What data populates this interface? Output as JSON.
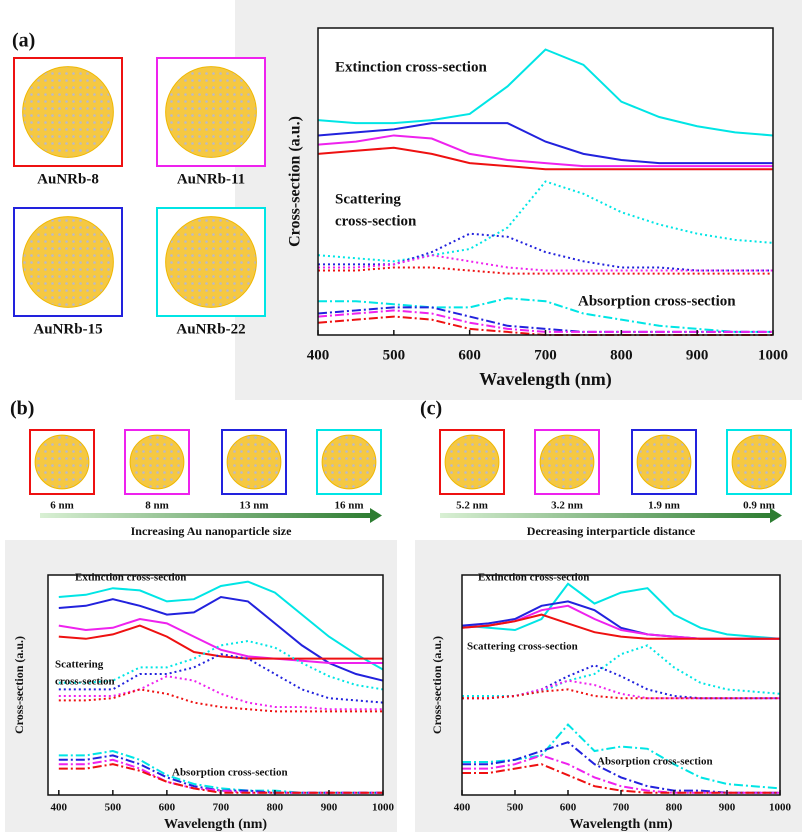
{
  "figure": {
    "panel_labels": [
      "(a)",
      "(b)",
      "(c)"
    ],
    "a_particles": [
      "AuNRb-8",
      "AuNRb-11",
      "AuNRb-15",
      "AuNRb-22"
    ],
    "b_particles": [
      "6 nm",
      "8 nm",
      "13 nm",
      "16 nm"
    ],
    "b_caption": "Increasing Au nanoparticle size",
    "c_particles": [
      "5.2 nm",
      "3.2 nm",
      "1.9 nm",
      "0.9 nm"
    ],
    "c_caption": "Decreasing interparticle distance"
  },
  "chart_data": [
    {
      "type": "line",
      "xlabel": "Wavelength (nm)",
      "ylabel": "Cross-section (a.u.)",
      "annotations": [
        "Extinction cross-section",
        "Scattering",
        "cross-section",
        "Absorption cross-section"
      ],
      "x": [
        400,
        450,
        500,
        550,
        600,
        650,
        700,
        750,
        800,
        850,
        900,
        950,
        1000
      ],
      "xlim": [
        400,
        1000
      ],
      "xticks": [
        400,
        500,
        600,
        700,
        800,
        900,
        1000
      ],
      "ylim": [
        0,
        100
      ],
      "series": [
        {
          "color": "#00e5e5",
          "dash": "solid",
          "values": [
            70,
            69,
            69,
            70,
            72,
            81,
            93,
            88,
            76,
            71,
            68,
            66,
            65
          ]
        },
        {
          "color": "#2222dd",
          "dash": "solid",
          "values": [
            65,
            66,
            67,
            69,
            69,
            69,
            63,
            59,
            57,
            56,
            56,
            56,
            56
          ]
        },
        {
          "color": "#ee22ee",
          "dash": "solid",
          "values": [
            62,
            63,
            65,
            64,
            59,
            57,
            56,
            55,
            55,
            55,
            55,
            55,
            55
          ]
        },
        {
          "color": "#ee1111",
          "dash": "solid",
          "values": [
            59,
            60,
            61,
            59,
            56,
            55,
            54,
            54,
            54,
            54,
            54,
            54,
            54
          ]
        },
        {
          "color": "#00e5e5",
          "dash": "dotted",
          "values": [
            26,
            25,
            24,
            26,
            28,
            35,
            50,
            46,
            40,
            36,
            33,
            31,
            30
          ]
        },
        {
          "color": "#2222dd",
          "dash": "dotted",
          "values": [
            23,
            23,
            23,
            27,
            33,
            32,
            27,
            24,
            22,
            22,
            21,
            21,
            21
          ]
        },
        {
          "color": "#ee22ee",
          "dash": "dotted",
          "values": [
            22,
            22,
            23,
            26,
            24,
            22,
            21,
            21,
            21,
            21,
            21,
            21,
            21
          ]
        },
        {
          "color": "#ee1111",
          "dash": "dotted",
          "values": [
            21,
            21,
            22,
            22,
            21,
            20,
            20,
            20,
            20,
            20,
            20,
            20,
            20
          ]
        },
        {
          "color": "#00e5e5",
          "dash": "dashdot",
          "values": [
            11,
            11,
            10,
            9,
            9,
            12,
            11,
            7,
            5,
            3,
            2,
            1,
            1
          ]
        },
        {
          "color": "#2222dd",
          "dash": "dashdot",
          "values": [
            7,
            8,
            9,
            9,
            6,
            3,
            2,
            1,
            1,
            1,
            1,
            1,
            1
          ]
        },
        {
          "color": "#ee22ee",
          "dash": "dashdot",
          "values": [
            6,
            7,
            8,
            7,
            4,
            2,
            1,
            1,
            1,
            1,
            1,
            1,
            1
          ]
        },
        {
          "color": "#ee1111",
          "dash": "dashdot",
          "values": [
            4,
            5,
            6,
            5,
            2,
            1,
            0,
            0,
            0,
            0,
            0,
            0,
            0
          ]
        }
      ]
    },
    {
      "type": "line",
      "xlabel": "Wavelength (nm)",
      "ylabel": "Cross-section (a.u.)",
      "annotations": [
        "Extinction cross-section",
        "Scattering",
        "cross-section",
        "Absorption cross-section"
      ],
      "x": [
        400,
        450,
        500,
        550,
        600,
        650,
        700,
        750,
        800,
        850,
        900,
        950,
        1000
      ],
      "xlim": [
        380,
        1000
      ],
      "xticks": [
        400,
        500,
        600,
        700,
        800,
        900,
        1000
      ],
      "ylim": [
        0,
        100
      ],
      "series": [
        {
          "color": "#00e5e5",
          "dash": "solid",
          "values": [
            90,
            91,
            94,
            93,
            88,
            89,
            95,
            97,
            92,
            82,
            72,
            64,
            57
          ]
        },
        {
          "color": "#2222dd",
          "dash": "solid",
          "values": [
            85,
            86,
            89,
            86,
            82,
            83,
            90,
            88,
            78,
            68,
            60,
            55,
            52
          ]
        },
        {
          "color": "#ee22ee",
          "dash": "solid",
          "values": [
            77,
            75,
            76,
            80,
            78,
            72,
            66,
            63,
            62,
            61,
            60,
            60,
            60
          ]
        },
        {
          "color": "#ee1111",
          "dash": "solid",
          "values": [
            72,
            71,
            73,
            77,
            72,
            65,
            63,
            62,
            62,
            62,
            62,
            62,
            62
          ]
        },
        {
          "color": "#00e5e5",
          "dash": "dotted",
          "values": [
            51,
            51,
            52,
            58,
            58,
            62,
            68,
            70,
            67,
            60,
            54,
            50,
            48
          ]
        },
        {
          "color": "#2222dd",
          "dash": "dotted",
          "values": [
            48,
            48,
            48,
            55,
            55,
            58,
            64,
            62,
            55,
            48,
            44,
            43,
            42
          ]
        },
        {
          "color": "#ee22ee",
          "dash": "dotted",
          "values": [
            45,
            45,
            45,
            48,
            54,
            52,
            46,
            42,
            40,
            40,
            39,
            39,
            39
          ]
        },
        {
          "color": "#ee1111",
          "dash": "dotted",
          "values": [
            43,
            43,
            44,
            48,
            46,
            42,
            40,
            39,
            38,
            38,
            38,
            38,
            38
          ]
        },
        {
          "color": "#00e5e5",
          "dash": "dashdot",
          "values": [
            18,
            18,
            20,
            16,
            9,
            5,
            3,
            2,
            2,
            1,
            1,
            1,
            1
          ]
        },
        {
          "color": "#2222dd",
          "dash": "dashdot",
          "values": [
            16,
            16,
            18,
            14,
            8,
            4,
            2,
            2,
            1,
            1,
            1,
            1,
            1
          ]
        },
        {
          "color": "#ee22ee",
          "dash": "dashdot",
          "values": [
            14,
            14,
            16,
            12,
            6,
            3,
            2,
            1,
            1,
            1,
            1,
            1,
            1
          ]
        },
        {
          "color": "#ee1111",
          "dash": "dashdot",
          "values": [
            12,
            12,
            14,
            11,
            6,
            3,
            1,
            1,
            1,
            1,
            1,
            1,
            1
          ]
        }
      ]
    },
    {
      "type": "line",
      "xlabel": "Wavelength (nm)",
      "ylabel": "Cross-section (a.u.)",
      "annotations": [
        "Extinction cross-section",
        "Scattering cross-section",
        "Absorption cross-section"
      ],
      "x": [
        400,
        450,
        500,
        550,
        600,
        650,
        700,
        750,
        800,
        850,
        900,
        950,
        1000
      ],
      "xlim": [
        400,
        1000
      ],
      "xticks": [
        400,
        500,
        600,
        700,
        800,
        900,
        1000
      ],
      "ylim": [
        0,
        100
      ],
      "series": [
        {
          "color": "#00e5e5",
          "dash": "solid",
          "values": [
            77,
            76,
            75,
            80,
            96,
            87,
            92,
            94,
            82,
            76,
            73,
            72,
            71
          ]
        },
        {
          "color": "#2222dd",
          "dash": "solid",
          "values": [
            77,
            78,
            80,
            86,
            88,
            84,
            76,
            73,
            72,
            71,
            71,
            71,
            71
          ]
        },
        {
          "color": "#ee22ee",
          "dash": "solid",
          "values": [
            76,
            77,
            79,
            84,
            86,
            80,
            75,
            73,
            72,
            71,
            71,
            71,
            71
          ]
        },
        {
          "color": "#ee1111",
          "dash": "solid",
          "values": [
            76,
            77,
            79,
            82,
            78,
            74,
            72,
            71,
            71,
            71,
            71,
            71,
            71
          ]
        },
        {
          "color": "#00e5e5",
          "dash": "dotted",
          "values": [
            45,
            45,
            45,
            47,
            52,
            55,
            64,
            68,
            58,
            51,
            48,
            47,
            46
          ]
        },
        {
          "color": "#2222dd",
          "dash": "dotted",
          "values": [
            44,
            44,
            45,
            48,
            54,
            59,
            54,
            48,
            45,
            44,
            44,
            44,
            44
          ]
        },
        {
          "color": "#ee22ee",
          "dash": "dotted",
          "values": [
            44,
            44,
            45,
            48,
            52,
            50,
            46,
            44,
            44,
            44,
            44,
            44,
            44
          ]
        },
        {
          "color": "#ee1111",
          "dash": "dotted",
          "values": [
            44,
            44,
            45,
            47,
            48,
            45,
            44,
            44,
            44,
            44,
            44,
            44,
            44
          ]
        },
        {
          "color": "#00e5e5",
          "dash": "dashdot",
          "values": [
            15,
            15,
            16,
            18,
            32,
            20,
            22,
            21,
            14,
            8,
            5,
            4,
            3
          ]
        },
        {
          "color": "#2222dd",
          "dash": "dashdot",
          "values": [
            14,
            14,
            16,
            20,
            24,
            14,
            8,
            4,
            2,
            2,
            1,
            1,
            1
          ]
        },
        {
          "color": "#ee22ee",
          "dash": "dashdot",
          "values": [
            12,
            12,
            14,
            18,
            14,
            8,
            4,
            2,
            1,
            1,
            1,
            1,
            1
          ]
        },
        {
          "color": "#ee1111",
          "dash": "dashdot",
          "values": [
            10,
            10,
            12,
            14,
            9,
            4,
            2,
            1,
            1,
            1,
            1,
            1,
            1
          ]
        }
      ]
    }
  ]
}
